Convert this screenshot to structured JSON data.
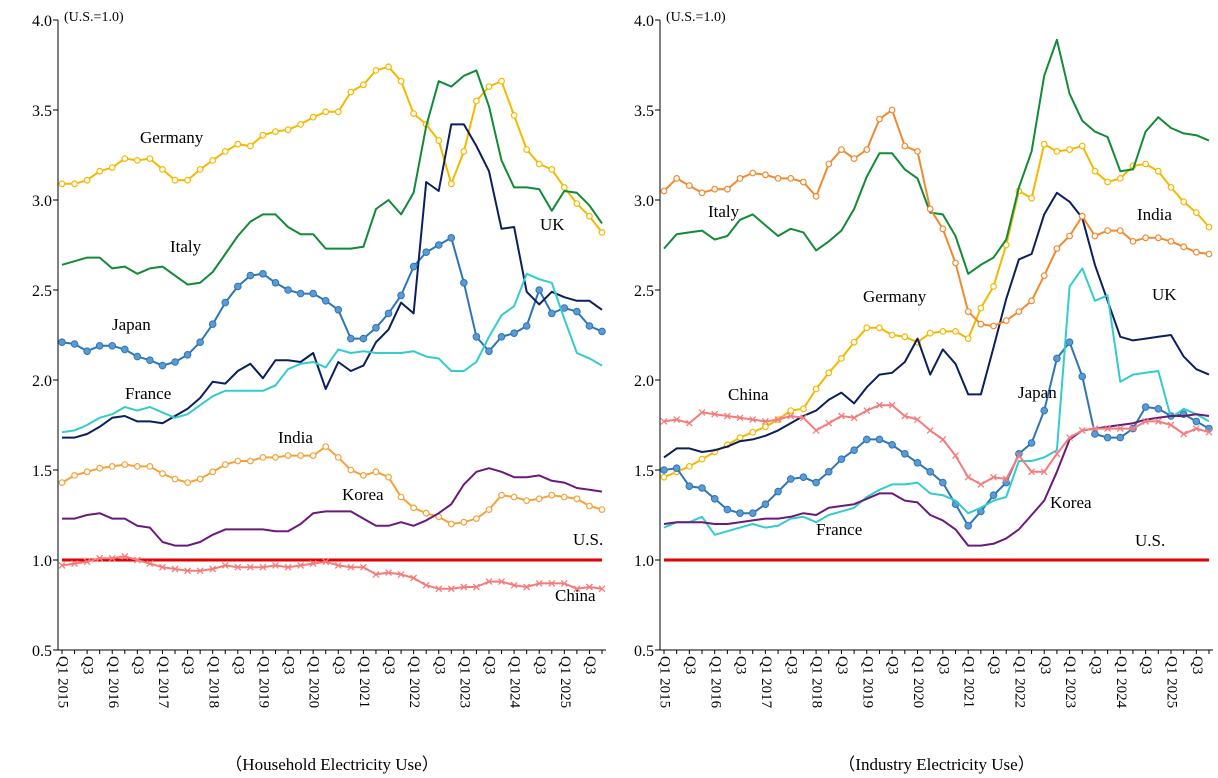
{
  "chart_data": [
    {
      "type": "line",
      "annotation": "(U.S.=1.0)",
      "xlabel": "（Household Electricity Use）",
      "categories": [
        "Q1 2015",
        null,
        "Q3",
        null,
        "Q1 2016",
        null,
        "Q3",
        null,
        "Q1 2017",
        null,
        "Q3",
        null,
        "Q1 2018",
        null,
        "Q3",
        null,
        "Q1 2019",
        null,
        "Q3",
        null,
        "Q1 2020",
        null,
        "Q3",
        null,
        "Q1 2021",
        null,
        "Q3",
        null,
        "Q1 2022",
        null,
        "Q3",
        null,
        "Q1 2023",
        null,
        "Q3",
        null,
        "Q1 2024",
        null,
        "Q3",
        null,
        "Q1 2025",
        null,
        "Q3",
        null
      ],
      "ylim": [
        0.5,
        4.0
      ],
      "yticks": [
        0.5,
        {
          "value": 1,
          "label": "1.0"
        },
        1.5,
        {
          "value": 2,
          "label": "2.0"
        },
        2.5,
        {
          "value": 3,
          "label": "3.0"
        },
        3.5,
        {
          "value": 4,
          "label": "4.0"
        }
      ],
      "series": [
        {
          "name": "Germany",
          "color": "#f5b800",
          "marker": "open-circle",
          "values": [
            3.09,
            3.09,
            3.11,
            3.16,
            3.18,
            3.23,
            3.22,
            3.23,
            3.17,
            3.11,
            3.11,
            3.17,
            3.22,
            3.27,
            3.31,
            3.3,
            3.36,
            3.38,
            3.39,
            3.42,
            3.46,
            3.49,
            3.49,
            3.6,
            3.64,
            3.72,
            3.74,
            3.66,
            3.48,
            3.42,
            3.33,
            3.09,
            3.27,
            3.55,
            3.63,
            3.66,
            3.47,
            3.28,
            3.2,
            3.17,
            3.07,
            2.98,
            2.91,
            2.82
          ]
        },
        {
          "name": "Italy",
          "color": "#138a36",
          "values": [
            2.64,
            2.66,
            2.68,
            2.68,
            2.62,
            2.63,
            2.59,
            2.62,
            2.63,
            2.58,
            2.53,
            2.54,
            2.6,
            2.7,
            2.8,
            2.88,
            2.92,
            2.92,
            2.85,
            2.81,
            2.81,
            2.73,
            2.73,
            2.73,
            2.74,
            2.95,
            3.0,
            2.92,
            3.04,
            3.41,
            3.66,
            3.63,
            3.69,
            3.72,
            3.52,
            3.22,
            3.07,
            3.07,
            3.06,
            2.94,
            3.05,
            3.04,
            2.97,
            2.87
          ]
        },
        {
          "name": "Japan",
          "color": "#2e75b6",
          "marker": "filled-circle",
          "values": [
            2.21,
            2.2,
            2.16,
            2.19,
            2.19,
            2.17,
            2.13,
            2.11,
            2.08,
            2.1,
            2.14,
            2.21,
            2.31,
            2.43,
            2.52,
            2.58,
            2.59,
            2.54,
            2.5,
            2.48,
            2.48,
            2.44,
            2.39,
            2.23,
            2.23,
            2.29,
            2.37,
            2.47,
            2.63,
            2.71,
            2.75,
            2.79,
            2.54,
            2.24,
            2.16,
            2.24,
            2.26,
            2.3,
            2.5,
            2.37,
            2.4,
            2.38,
            2.3,
            2.27
          ]
        },
        {
          "name": "UK",
          "color": "#0b1f5c",
          "values": [
            1.68,
            1.68,
            1.7,
            1.74,
            1.79,
            1.8,
            1.77,
            1.77,
            1.76,
            1.8,
            1.84,
            1.9,
            1.99,
            1.98,
            2.05,
            2.09,
            2.01,
            2.11,
            2.11,
            2.1,
            2.15,
            1.95,
            2.1,
            2.05,
            2.08,
            2.21,
            2.28,
            2.43,
            2.37,
            3.1,
            3.05,
            3.42,
            3.42,
            3.3,
            3.16,
            2.84,
            2.85,
            2.49,
            2.42,
            2.49,
            2.46,
            2.44,
            2.44,
            2.39
          ]
        },
        {
          "name": "France",
          "color": "#33cccc",
          "values": [
            1.71,
            1.72,
            1.75,
            1.79,
            1.81,
            1.85,
            1.83,
            1.85,
            1.82,
            1.79,
            1.81,
            1.86,
            1.91,
            1.94,
            1.94,
            1.94,
            1.94,
            1.97,
            2.06,
            2.09,
            2.1,
            2.07,
            2.17,
            2.15,
            2.16,
            2.15,
            2.15,
            2.15,
            2.16,
            2.13,
            2.12,
            2.05,
            2.05,
            2.1,
            2.24,
            2.36,
            2.41,
            2.59,
            2.56,
            2.54,
            2.34,
            2.15,
            2.12,
            2.08
          ]
        },
        {
          "name": "India",
          "color": "#f4a23a",
          "marker": "open-circle",
          "values": [
            1.43,
            1.47,
            1.49,
            1.51,
            1.52,
            1.53,
            1.52,
            1.52,
            1.48,
            1.45,
            1.43,
            1.45,
            1.49,
            1.53,
            1.55,
            1.55,
            1.57,
            1.57,
            1.58,
            1.58,
            1.58,
            1.63,
            1.57,
            1.5,
            1.47,
            1.49,
            1.46,
            1.35,
            1.29,
            1.26,
            1.24,
            1.2,
            1.21,
            1.23,
            1.28,
            1.36,
            1.35,
            1.33,
            1.34,
            1.36,
            1.35,
            1.34,
            1.3,
            1.28
          ]
        },
        {
          "name": "Korea",
          "color": "#6a1b7a",
          "values": [
            1.23,
            1.23,
            1.25,
            1.26,
            1.23,
            1.23,
            1.19,
            1.18,
            1.1,
            1.08,
            1.08,
            1.1,
            1.14,
            1.17,
            1.17,
            1.17,
            1.17,
            1.16,
            1.16,
            1.2,
            1.26,
            1.27,
            1.27,
            1.27,
            1.23,
            1.19,
            1.19,
            1.21,
            1.19,
            1.22,
            1.26,
            1.31,
            1.42,
            1.49,
            1.51,
            1.49,
            1.46,
            1.46,
            1.47,
            1.44,
            1.43,
            1.4,
            1.39,
            1.38
          ]
        },
        {
          "name": "U.S.",
          "color": "#e00000",
          "width": 3,
          "values": [
            1,
            1,
            1,
            1,
            1,
            1,
            1,
            1,
            1,
            1,
            1,
            1,
            1,
            1,
            1,
            1,
            1,
            1,
            1,
            1,
            1,
            1,
            1,
            1,
            1,
            1,
            1,
            1,
            1,
            1,
            1,
            1,
            1,
            1,
            1,
            1,
            1,
            1,
            1,
            1,
            1,
            1,
            1,
            1
          ]
        },
        {
          "name": "China",
          "color": "#f47c7c",
          "marker": "x",
          "values": [
            0.97,
            0.98,
            0.99,
            1.01,
            1.01,
            1.02,
            1.0,
            0.98,
            0.96,
            0.95,
            0.94,
            0.94,
            0.95,
            0.97,
            0.96,
            0.96,
            0.96,
            0.97,
            0.96,
            0.97,
            0.98,
            0.99,
            0.97,
            0.96,
            0.96,
            0.92,
            0.93,
            0.92,
            0.9,
            0.86,
            0.84,
            0.84,
            0.85,
            0.85,
            0.88,
            0.88,
            0.86,
            0.85,
            0.87,
            0.87,
            0.87,
            0.84,
            0.85,
            0.84
          ]
        }
      ]
    },
    {
      "type": "line",
      "annotation": "(U.S.=1.0)",
      "xlabel": "（Industry Electricity Use）",
      "categories": [
        "Q1 2015",
        null,
        "Q3",
        null,
        "Q1 2016",
        null,
        "Q3",
        null,
        "Q1 2017",
        null,
        "Q3",
        null,
        "Q1 2018",
        null,
        "Q3",
        null,
        "Q1 2019",
        null,
        "Q3",
        null,
        "Q1 2020",
        null,
        "Q3",
        null,
        "Q1 2021",
        null,
        "Q3",
        null,
        "Q1 2022",
        null,
        "Q3",
        null,
        "Q1 2023",
        null,
        "Q3",
        null,
        "Q1 2024",
        null,
        "Q3",
        null,
        "Q1 2025",
        null,
        "Q3",
        null
      ],
      "ylim": [
        0.5,
        4.0
      ],
      "yticks": [
        0.5,
        {
          "value": 1,
          "label": "1.0"
        },
        1.5,
        {
          "value": 2,
          "label": "2.0"
        },
        2.5,
        {
          "value": 3,
          "label": "3.0"
        },
        3.5,
        {
          "value": 4,
          "label": "4.0"
        }
      ],
      "series": [
        {
          "name": "Germany",
          "color": "#f5b800",
          "marker": "open-circle",
          "values": [
            1.46,
            1.49,
            1.52,
            1.56,
            1.6,
            1.64,
            1.68,
            1.71,
            1.74,
            1.78,
            1.83,
            1.84,
            1.95,
            2.04,
            2.12,
            2.21,
            2.29,
            2.29,
            2.25,
            2.24,
            2.21,
            2.26,
            2.27,
            2.27,
            2.23,
            2.4,
            2.52,
            2.75,
            3.05,
            3.01,
            3.31,
            3.27,
            3.28,
            3.3,
            3.16,
            3.1,
            3.12,
            3.19,
            3.2,
            3.16,
            3.07,
            2.99,
            2.93,
            2.85
          ]
        },
        {
          "name": "Italy",
          "color": "#138a36",
          "values": [
            2.73,
            2.81,
            2.82,
            2.83,
            2.78,
            2.8,
            2.89,
            2.92,
            2.86,
            2.8,
            2.84,
            2.82,
            2.72,
            2.77,
            2.83,
            2.95,
            3.13,
            3.26,
            3.26,
            3.17,
            3.12,
            2.93,
            2.92,
            2.8,
            2.59,
            2.64,
            2.68,
            2.78,
            3.07,
            3.27,
            3.69,
            3.89,
            3.59,
            3.44,
            3.38,
            3.35,
            3.16,
            3.17,
            3.38,
            3.46,
            3.4,
            3.37,
            3.36,
            3.33
          ]
        },
        {
          "name": "Japan",
          "color": "#2e75b6",
          "marker": "filled-circle",
          "values": [
            1.5,
            1.51,
            1.41,
            1.4,
            1.34,
            1.28,
            1.26,
            1.26,
            1.31,
            1.38,
            1.45,
            1.46,
            1.43,
            1.49,
            1.56,
            1.61,
            1.67,
            1.67,
            1.64,
            1.59,
            1.54,
            1.49,
            1.43,
            1.31,
            1.19,
            1.27,
            1.36,
            1.43,
            1.59,
            1.65,
            1.83,
            2.12,
            2.21,
            2.02,
            1.7,
            1.68,
            1.68,
            1.73,
            1.85,
            1.84,
            1.8,
            1.81,
            1.77,
            1.73
          ]
        },
        {
          "name": "UK",
          "color": "#0b1f5c",
          "values": [
            1.57,
            1.62,
            1.62,
            1.6,
            1.61,
            1.63,
            1.66,
            1.67,
            1.69,
            1.72,
            1.76,
            1.8,
            1.83,
            1.89,
            1.93,
            1.87,
            1.96,
            2.03,
            2.04,
            2.1,
            2.23,
            2.03,
            2.17,
            2.09,
            1.92,
            1.92,
            2.18,
            2.45,
            2.67,
            2.7,
            2.92,
            3.04,
            2.99,
            2.9,
            2.64,
            2.44,
            2.24,
            2.22,
            2.23,
            2.24,
            2.25,
            2.13,
            2.06,
            2.03
          ]
        },
        {
          "name": "France",
          "color": "#33cccc",
          "values": [
            1.18,
            1.21,
            1.21,
            1.24,
            1.14,
            1.16,
            1.18,
            1.2,
            1.18,
            1.19,
            1.23,
            1.24,
            1.21,
            1.25,
            1.27,
            1.29,
            1.35,
            1.39,
            1.42,
            1.42,
            1.43,
            1.37,
            1.36,
            1.33,
            1.26,
            1.29,
            1.33,
            1.35,
            1.55,
            1.55,
            1.57,
            1.61,
            2.52,
            2.62,
            2.44,
            2.47,
            1.99,
            2.03,
            2.04,
            2.05,
            1.79,
            1.84,
            1.81,
            1.77
          ]
        },
        {
          "name": "India",
          "color": "#f08a30",
          "marker": "open-circle",
          "values": [
            3.05,
            3.12,
            3.08,
            3.04,
            3.06,
            3.06,
            3.12,
            3.15,
            3.14,
            3.12,
            3.12,
            3.1,
            3.02,
            3.2,
            3.28,
            3.23,
            3.28,
            3.45,
            3.5,
            3.3,
            3.27,
            2.95,
            2.84,
            2.65,
            2.38,
            2.31,
            2.3,
            2.33,
            2.38,
            2.44,
            2.58,
            2.73,
            2.8,
            2.91,
            2.8,
            2.83,
            2.83,
            2.77,
            2.79,
            2.79,
            2.77,
            2.74,
            2.71,
            2.7
          ]
        },
        {
          "name": "Korea",
          "color": "#6a1b7a",
          "values": [
            1.2,
            1.21,
            1.21,
            1.21,
            1.2,
            1.2,
            1.21,
            1.22,
            1.23,
            1.23,
            1.24,
            1.26,
            1.25,
            1.29,
            1.3,
            1.31,
            1.34,
            1.37,
            1.37,
            1.33,
            1.32,
            1.25,
            1.22,
            1.17,
            1.08,
            1.08,
            1.09,
            1.12,
            1.17,
            1.25,
            1.33,
            1.49,
            1.67,
            1.72,
            1.73,
            1.74,
            1.75,
            1.76,
            1.78,
            1.79,
            1.8,
            1.8,
            1.81,
            1.8
          ]
        },
        {
          "name": "U.S.",
          "color": "#e00000",
          "width": 3,
          "values": [
            1,
            1,
            1,
            1,
            1,
            1,
            1,
            1,
            1,
            1,
            1,
            1,
            1,
            1,
            1,
            1,
            1,
            1,
            1,
            1,
            1,
            1,
            1,
            1,
            1,
            1,
            1,
            1,
            1,
            1,
            1,
            1,
            1,
            1,
            1,
            1,
            1,
            1,
            1,
            1,
            1,
            1,
            1,
            1
          ]
        },
        {
          "name": "China",
          "color": "#f47c7c",
          "marker": "x",
          "values": [
            1.77,
            1.78,
            1.76,
            1.82,
            1.81,
            1.8,
            1.79,
            1.78,
            1.77,
            1.78,
            1.8,
            1.79,
            1.72,
            1.76,
            1.8,
            1.79,
            1.83,
            1.86,
            1.86,
            1.8,
            1.78,
            1.72,
            1.67,
            1.58,
            1.46,
            1.42,
            1.46,
            1.45,
            1.58,
            1.49,
            1.49,
            1.59,
            1.68,
            1.72,
            1.73,
            1.73,
            1.73,
            1.73,
            1.77,
            1.77,
            1.75,
            1.7,
            1.73,
            1.71
          ]
        }
      ]
    }
  ]
}
